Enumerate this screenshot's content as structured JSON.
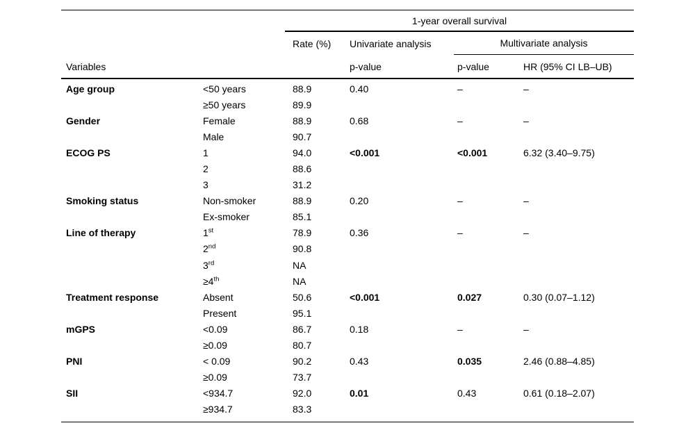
{
  "page": {
    "background": "#ffffff",
    "text_color": "#000000"
  },
  "table": {
    "spanner_header": "1-year overall survival",
    "headers": {
      "variables": "Variables",
      "rate": "Rate (%)",
      "univariate_group": "Univariate analysis",
      "multivariate_group": "Multivariate analysis",
      "univariate_p": "p-value",
      "multivariate_p": "p-value",
      "hr": "HR (95% CI LB–UB)"
    },
    "rows": [
      {
        "variable": "Age group",
        "category": "<50 years",
        "category_sup": "",
        "rate": "88.9",
        "uni_p": "0.40",
        "uni_p_bold": false,
        "multi_p": "–",
        "multi_p_bold": false,
        "hr": "–"
      },
      {
        "variable": "",
        "category": "≥50 years",
        "category_sup": "",
        "rate": "89.9",
        "uni_p": "",
        "uni_p_bold": false,
        "multi_p": "",
        "multi_p_bold": false,
        "hr": ""
      },
      {
        "variable": "Gender",
        "category": "Female",
        "category_sup": "",
        "rate": "88.9",
        "uni_p": "0.68",
        "uni_p_bold": false,
        "multi_p": "–",
        "multi_p_bold": false,
        "hr": "–"
      },
      {
        "variable": "",
        "category": "Male",
        "category_sup": "",
        "rate": "90.7",
        "uni_p": "",
        "uni_p_bold": false,
        "multi_p": "",
        "multi_p_bold": false,
        "hr": ""
      },
      {
        "variable": "ECOG PS",
        "category": "1",
        "category_sup": "",
        "rate": "94.0",
        "uni_p": "<0.001",
        "uni_p_bold": true,
        "multi_p": "<0.001",
        "multi_p_bold": true,
        "hr": "6.32 (3.40–9.75)"
      },
      {
        "variable": "",
        "category": "2",
        "category_sup": "",
        "rate": "88.6",
        "uni_p": "",
        "uni_p_bold": false,
        "multi_p": "",
        "multi_p_bold": false,
        "hr": ""
      },
      {
        "variable": "",
        "category": "3",
        "category_sup": "",
        "rate": "31.2",
        "uni_p": "",
        "uni_p_bold": false,
        "multi_p": "",
        "multi_p_bold": false,
        "hr": ""
      },
      {
        "variable": "Smoking status",
        "category": "Non-smoker",
        "category_sup": "",
        "rate": "88.9",
        "uni_p": "0.20",
        "uni_p_bold": false,
        "multi_p": "–",
        "multi_p_bold": false,
        "hr": "–"
      },
      {
        "variable": "",
        "category": "Ex-smoker",
        "category_sup": "",
        "rate": "85.1",
        "uni_p": "",
        "uni_p_bold": false,
        "multi_p": "",
        "multi_p_bold": false,
        "hr": ""
      },
      {
        "variable": "Line of therapy",
        "category": "1",
        "category_sup": "st",
        "rate": "78.9",
        "uni_p": "0.36",
        "uni_p_bold": false,
        "multi_p": "–",
        "multi_p_bold": false,
        "hr": "–"
      },
      {
        "variable": "",
        "category": "2",
        "category_sup": "nd",
        "rate": "90.8",
        "uni_p": "",
        "uni_p_bold": false,
        "multi_p": "",
        "multi_p_bold": false,
        "hr": ""
      },
      {
        "variable": "",
        "category": "3",
        "category_sup": "rd",
        "rate": "NA",
        "uni_p": "",
        "uni_p_bold": false,
        "multi_p": "",
        "multi_p_bold": false,
        "hr": ""
      },
      {
        "variable": "",
        "category": "≥4",
        "category_sup": "th",
        "rate": "NA",
        "uni_p": "",
        "uni_p_bold": false,
        "multi_p": "",
        "multi_p_bold": false,
        "hr": ""
      },
      {
        "variable": "Treatment response",
        "category": "Absent",
        "category_sup": "",
        "rate": "50.6",
        "uni_p": "<0.001",
        "uni_p_bold": true,
        "multi_p": "0.027",
        "multi_p_bold": true,
        "hr": "0.30 (0.07–1.12)"
      },
      {
        "variable": "",
        "category": "Present",
        "category_sup": "",
        "rate": "95.1",
        "uni_p": "",
        "uni_p_bold": false,
        "multi_p": "",
        "multi_p_bold": false,
        "hr": ""
      },
      {
        "variable": "mGPS",
        "category": "<0.09",
        "category_sup": "",
        "rate": "86.7",
        "uni_p": "0.18",
        "uni_p_bold": false,
        "multi_p": "–",
        "multi_p_bold": false,
        "hr": "–"
      },
      {
        "variable": "",
        "category": "≥0.09",
        "category_sup": "",
        "rate": "80.7",
        "uni_p": "",
        "uni_p_bold": false,
        "multi_p": "",
        "multi_p_bold": false,
        "hr": ""
      },
      {
        "variable": "PNI",
        "category": "< 0.09",
        "category_sup": "",
        "rate": "90.2",
        "uni_p": "0.43",
        "uni_p_bold": false,
        "multi_p": "0.035",
        "multi_p_bold": true,
        "hr": "2.46 (0.88–4.85)"
      },
      {
        "variable": "",
        "category": "≥0.09",
        "category_sup": "",
        "rate": "73.7",
        "uni_p": "",
        "uni_p_bold": false,
        "multi_p": "",
        "multi_p_bold": false,
        "hr": ""
      },
      {
        "variable": "SII",
        "category": "<934.7",
        "category_sup": "",
        "rate": "92.0",
        "uni_p": "0.01",
        "uni_p_bold": true,
        "multi_p": "0.43",
        "multi_p_bold": false,
        "hr": "0.61 (0.18–2.07)"
      },
      {
        "variable": "",
        "category": "≥934.7",
        "category_sup": "",
        "rate": "83.3",
        "uni_p": "",
        "uni_p_bold": false,
        "multi_p": "",
        "multi_p_bold": false,
        "hr": ""
      }
    ]
  }
}
